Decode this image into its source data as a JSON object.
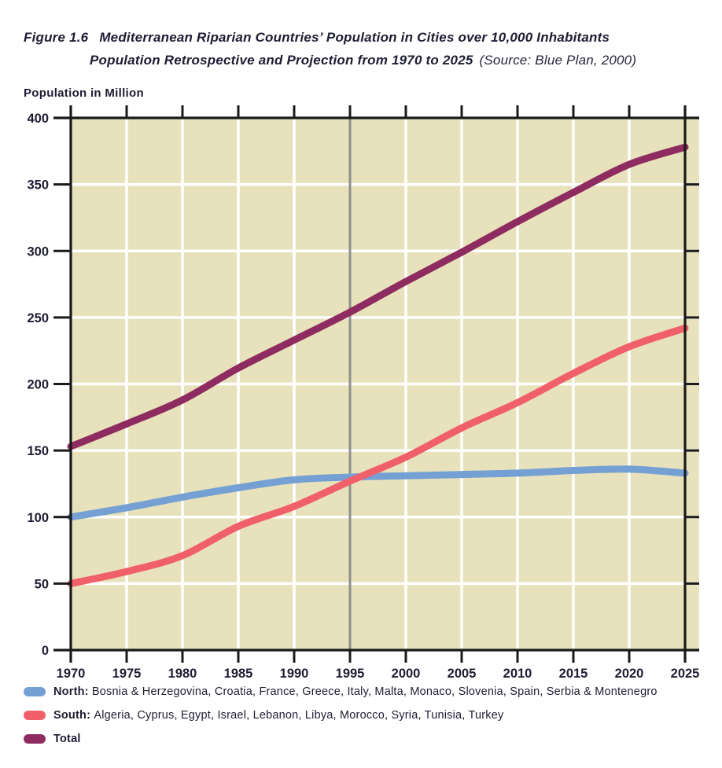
{
  "figure": {
    "label": "Figure 1.6",
    "title": "Mediterranean Riparian Countries’ Population in Cities over 10,000 Inhabitants",
    "subtitle": "Population Retrospective and Projection from 1970 to 2025",
    "source": "(Source: Blue Plan, 2000)"
  },
  "chart_data": {
    "type": "line",
    "title": "Mediterranean Riparian Countries’ Population in Cities over 10,000 Inhabitants — Population Retrospective and Projection from 1970 to 2025",
    "ylabel": "Population in Million",
    "xlabel": "",
    "x": [
      1970,
      1975,
      1980,
      1985,
      1990,
      1995,
      2000,
      2005,
      2010,
      2015,
      2020,
      2025
    ],
    "series": [
      {
        "name": "North",
        "color": "#75a0d4",
        "values": [
          100,
          107,
          115,
          122,
          128,
          130,
          131,
          132,
          133,
          135,
          136,
          133
        ]
      },
      {
        "name": "South",
        "color": "#f0606b",
        "values": [
          50,
          59,
          71,
          93,
          108,
          127,
          145,
          167,
          186,
          208,
          228,
          242
        ]
      },
      {
        "name": "Total",
        "color": "#8e2c61",
        "values": [
          153,
          170,
          188,
          212,
          233,
          254,
          277,
          299,
          322,
          344,
          365,
          378
        ]
      }
    ],
    "ylim": [
      0,
      400
    ],
    "ytick_step": 50,
    "xlim": [
      1970,
      2025
    ],
    "grid": true,
    "marker_line_x": 1995,
    "legend_position": "bottom-left",
    "plot_bg": "#e7e2bb",
    "grid_color": "#ffffff",
    "frame_color": "#1a1a1a",
    "marker_color": "#8f8f8f",
    "text_color": "#1d1d33"
  },
  "legend": [
    {
      "name": "North",
      "color": "#75a0d4",
      "label_bold": "North:",
      "label_rest": "Bosnia & Herzegovina, Croatia, France, Greece, Italy, Malta, Monaco, Slovenia, Spain, Serbia & Montenegro"
    },
    {
      "name": "South",
      "color": "#f0606b",
      "label_bold": "South:",
      "label_rest": "Algeria, Cyprus, Egypt, Israel, Lebanon, Libya, Morocco, Syria, Tunisia, Turkey"
    },
    {
      "name": "Total",
      "color": "#8e2c61",
      "label_bold": "Total",
      "label_rest": ""
    }
  ]
}
